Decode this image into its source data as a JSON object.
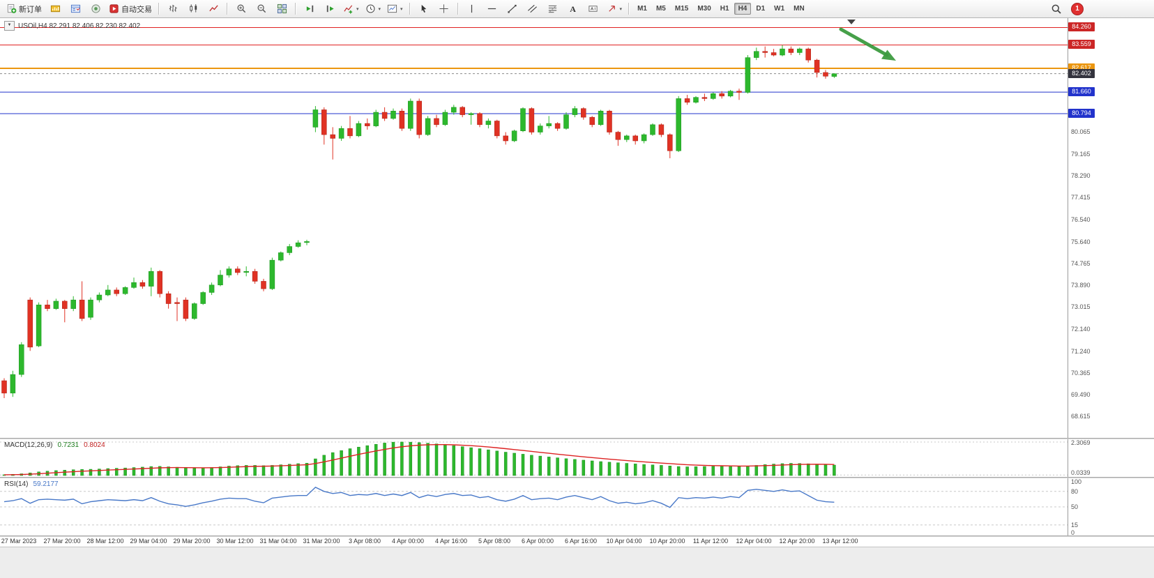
{
  "toolbar": {
    "new_order_label": "新订单",
    "autotrading_label": "自动交易",
    "timeframes": [
      "M1",
      "M5",
      "M15",
      "M30",
      "H1",
      "H4",
      "D1",
      "W1",
      "MN"
    ],
    "active_timeframe": "H4",
    "notification_count": "1"
  },
  "chart": {
    "symbol_label": "USOil,H4 82.291 82.406 82.230 82.402",
    "levels": [
      {
        "price": 84.26,
        "label": "84.260",
        "color": "#e02222",
        "badge": "#cc2626",
        "width": 1
      },
      {
        "price": 83.559,
        "label": "83.559",
        "color": "#e02222",
        "badge": "#cc2626",
        "width": 1
      },
      {
        "price": 82.617,
        "label": "82.617",
        "color": "#eb960f",
        "badge": "#eb960f",
        "width": 2
      },
      {
        "price": 81.66,
        "label": "81.660",
        "color": "#2233cc",
        "badge": "#2233cc",
        "width": 1
      },
      {
        "price": 80.794,
        "label": "80.794",
        "color": "#2233cc",
        "badge": "#2233cc",
        "width": 1
      }
    ],
    "current_badge": {
      "price": 82.402,
      "label": "82.402",
      "bg": "#34343e"
    },
    "axis_labels": [
      80.065,
      79.165,
      78.29,
      77.415,
      76.54,
      75.64,
      74.765,
      73.89,
      73.015,
      72.14,
      71.24,
      70.365,
      69.49,
      68.615
    ]
  },
  "chart_data": {
    "type": "candlestick",
    "symbol": "USOil",
    "timeframe": "H4",
    "current_ohlc": {
      "open": 82.291,
      "high": 82.406,
      "low": 82.23,
      "close": 82.402
    },
    "colors": {
      "bull": "#2db82d",
      "bear": "#e03224"
    },
    "ohlc": [
      [
        70.05,
        70.15,
        69.35,
        69.55
      ],
      [
        69.55,
        70.45,
        69.4,
        70.3
      ],
      [
        70.3,
        71.6,
        70.2,
        71.5
      ],
      [
        73.3,
        73.4,
        71.25,
        71.4
      ],
      [
        71.45,
        73.2,
        71.4,
        73.1
      ],
      [
        73.1,
        73.3,
        72.85,
        72.95
      ],
      [
        72.95,
        73.35,
        72.9,
        73.25
      ],
      [
        73.25,
        73.3,
        72.4,
        72.95
      ],
      [
        72.95,
        73.45,
        72.85,
        73.3
      ],
      [
        73.3,
        74.05,
        72.45,
        72.55
      ],
      [
        72.6,
        73.4,
        72.5,
        73.3
      ],
      [
        73.3,
        73.6,
        73.2,
        73.5
      ],
      [
        73.5,
        73.9,
        73.45,
        73.7
      ],
      [
        73.7,
        73.8,
        73.45,
        73.55
      ],
      [
        73.55,
        73.85,
        73.5,
        73.8
      ],
      [
        73.8,
        74.2,
        73.75,
        74.0
      ],
      [
        74.0,
        74.1,
        73.75,
        73.85
      ],
      [
        73.85,
        74.6,
        73.45,
        74.45
      ],
      [
        74.45,
        74.5,
        73.4,
        73.55
      ],
      [
        73.55,
        73.65,
        72.95,
        73.15
      ],
      [
        73.2,
        73.4,
        72.45,
        73.15
      ],
      [
        73.3,
        73.4,
        72.45,
        72.55
      ],
      [
        72.55,
        73.2,
        72.5,
        73.15
      ],
      [
        73.15,
        73.65,
        73.1,
        73.6
      ],
      [
        73.6,
        74.0,
        73.5,
        73.9
      ],
      [
        73.9,
        74.5,
        73.85,
        74.3
      ],
      [
        74.3,
        74.65,
        74.2,
        74.55
      ],
      [
        74.55,
        74.65,
        74.3,
        74.4
      ],
      [
        74.45,
        74.65,
        74.25,
        74.45
      ],
      [
        74.45,
        74.55,
        73.95,
        74.05
      ],
      [
        74.05,
        74.15,
        73.65,
        73.75
      ],
      [
        73.75,
        75.0,
        73.7,
        74.9
      ],
      [
        74.9,
        75.25,
        74.85,
        75.2
      ],
      [
        75.2,
        75.55,
        75.1,
        75.45
      ],
      [
        75.45,
        75.7,
        75.4,
        75.6
      ],
      [
        75.62,
        75.72,
        75.5,
        75.65
      ],
      [
        80.25,
        81.1,
        80.05,
        80.95
      ],
      [
        80.95,
        81.05,
        79.55,
        79.95
      ],
      [
        79.95,
        80.25,
        78.95,
        79.8
      ],
      [
        79.8,
        80.3,
        79.7,
        80.2
      ],
      [
        80.2,
        80.7,
        79.8,
        79.9
      ],
      [
        79.9,
        80.5,
        79.85,
        80.4
      ],
      [
        80.4,
        80.6,
        80.15,
        80.3
      ],
      [
        80.3,
        80.95,
        80.25,
        80.85
      ],
      [
        80.85,
        81.05,
        80.5,
        80.6
      ],
      [
        80.6,
        81.0,
        80.55,
        80.9
      ],
      [
        80.9,
        81.0,
        80.1,
        80.2
      ],
      [
        80.2,
        81.4,
        80.1,
        81.3
      ],
      [
        81.3,
        81.4,
        79.8,
        79.95
      ],
      [
        79.95,
        80.7,
        79.9,
        80.6
      ],
      [
        80.6,
        80.75,
        80.25,
        80.35
      ],
      [
        80.35,
        80.95,
        80.3,
        80.85
      ],
      [
        80.85,
        81.15,
        80.75,
        81.05
      ],
      [
        81.05,
        81.1,
        80.65,
        80.75
      ],
      [
        80.75,
        80.85,
        80.35,
        80.8
      ],
      [
        80.8,
        80.85,
        80.25,
        80.35
      ],
      [
        80.35,
        80.6,
        80.2,
        80.5
      ],
      [
        80.5,
        80.55,
        79.8,
        79.9
      ],
      [
        79.9,
        80.05,
        79.55,
        79.7
      ],
      [
        79.7,
        80.15,
        79.65,
        80.1
      ],
      [
        80.1,
        81.05,
        80.05,
        81.0
      ],
      [
        81.0,
        81.05,
        79.95,
        80.05
      ],
      [
        80.05,
        80.4,
        79.95,
        80.3
      ],
      [
        80.3,
        80.7,
        80.2,
        80.4
      ],
      [
        80.4,
        80.45,
        80.1,
        80.2
      ],
      [
        80.2,
        80.85,
        80.15,
        80.75
      ],
      [
        80.75,
        81.1,
        80.65,
        81.0
      ],
      [
        81.0,
        81.05,
        80.55,
        80.65
      ],
      [
        80.65,
        80.7,
        80.25,
        80.35
      ],
      [
        80.35,
        80.95,
        80.3,
        80.9
      ],
      [
        80.9,
        80.95,
        79.95,
        80.05
      ],
      [
        80.05,
        80.1,
        79.5,
        79.75
      ],
      [
        79.75,
        79.95,
        79.65,
        79.9
      ],
      [
        79.9,
        79.95,
        79.55,
        79.7
      ],
      [
        79.7,
        80.0,
        79.6,
        79.95
      ],
      [
        79.95,
        80.4,
        79.9,
        80.35
      ],
      [
        80.35,
        80.4,
        79.85,
        79.95
      ],
      [
        79.95,
        80.0,
        79.0,
        79.3
      ],
      [
        79.3,
        81.5,
        79.25,
        81.4
      ],
      [
        81.4,
        81.55,
        81.15,
        81.25
      ],
      [
        81.25,
        81.5,
        81.2,
        81.45
      ],
      [
        81.45,
        81.6,
        81.3,
        81.4
      ],
      [
        81.4,
        81.65,
        81.35,
        81.6
      ],
      [
        81.6,
        81.7,
        81.4,
        81.5
      ],
      [
        81.5,
        81.75,
        81.45,
        81.7
      ],
      [
        81.7,
        81.8,
        81.35,
        81.65
      ],
      [
        81.65,
        83.15,
        81.6,
        83.05
      ],
      [
        83.05,
        83.45,
        82.95,
        83.3
      ],
      [
        83.3,
        83.5,
        83.05,
        83.25
      ],
      [
        83.25,
        83.4,
        83.1,
        83.15
      ],
      [
        83.15,
        83.55,
        83.1,
        83.4
      ],
      [
        83.4,
        83.5,
        83.15,
        83.25
      ],
      [
        83.25,
        83.45,
        83.15,
        83.4
      ],
      [
        83.4,
        83.45,
        82.85,
        82.95
      ],
      [
        82.95,
        83.0,
        82.25,
        82.45
      ],
      [
        82.45,
        82.55,
        82.2,
        82.3
      ],
      [
        82.291,
        82.406,
        82.23,
        82.402
      ]
    ],
    "macd": {
      "label": "MACD(12,26,9)",
      "main_value": "0.7231",
      "signal_value": "0.8024",
      "scale_max": "2.3069",
      "scale_min": "0.0339",
      "histogram": [
        0.05,
        0.08,
        0.12,
        0.18,
        0.25,
        0.3,
        0.34,
        0.37,
        0.4,
        0.42,
        0.43,
        0.45,
        0.48,
        0.5,
        0.52,
        0.55,
        0.58,
        0.62,
        0.63,
        0.6,
        0.57,
        0.53,
        0.5,
        0.52,
        0.55,
        0.6,
        0.65,
        0.68,
        0.7,
        0.7,
        0.68,
        0.7,
        0.74,
        0.78,
        0.82,
        0.85,
        1.15,
        1.4,
        1.58,
        1.72,
        1.85,
        1.96,
        2.06,
        2.15,
        2.24,
        2.3,
        2.31,
        2.3,
        2.27,
        2.23,
        2.18,
        2.12,
        2.06,
        1.99,
        1.92,
        1.85,
        1.77,
        1.69,
        1.61,
        1.54,
        1.47,
        1.4,
        1.34,
        1.28,
        1.22,
        1.16,
        1.11,
        1.06,
        1.01,
        0.96,
        0.92,
        0.88,
        0.84,
        0.8,
        0.76,
        0.73,
        0.7,
        0.66,
        0.62,
        0.6,
        0.61,
        0.62,
        0.63,
        0.63,
        0.62,
        0.62,
        0.65,
        0.7,
        0.75,
        0.79,
        0.82,
        0.84,
        0.83,
        0.81,
        0.78,
        0.75,
        0.72
      ]
    },
    "rsi": {
      "label": "RSI(14)",
      "value": "59.2177",
      "levels": [
        80,
        50,
        15
      ],
      "scale_labels": [
        100,
        80,
        50,
        15,
        0
      ],
      "points": [
        60,
        62,
        66,
        57,
        64,
        65,
        64,
        63,
        65,
        56,
        60,
        62,
        64,
        63,
        62,
        64,
        62,
        68,
        61,
        56,
        54,
        51,
        54,
        58,
        61,
        65,
        67,
        66,
        66,
        61,
        58,
        67,
        69,
        71,
        72,
        72,
        88,
        80,
        76,
        78,
        72,
        74,
        73,
        76,
        72,
        75,
        72,
        78,
        68,
        73,
        70,
        74,
        76,
        72,
        73,
        68,
        70,
        64,
        61,
        65,
        72,
        64,
        66,
        67,
        64,
        69,
        72,
        68,
        64,
        70,
        62,
        57,
        59,
        56,
        58,
        62,
        57,
        49,
        68,
        66,
        68,
        67,
        69,
        67,
        70,
        68,
        82,
        84,
        82,
        80,
        83,
        80,
        81,
        72,
        63,
        60,
        59
      ]
    },
    "time_labels": [
      "27 Mar 2023",
      "27 Mar 20:00",
      "28 Mar 12:00",
      "29 Mar 04:00",
      "29 Mar 20:00",
      "30 Mar 12:00",
      "31 Mar 04:00",
      "31 Mar 20:00",
      "3 Apr 08:00",
      "4 Apr 00:00",
      "4 Apr 16:00",
      "5 Apr 08:00",
      "6 Apr 00:00",
      "6 Apr 16:00",
      "10 Apr 04:00",
      "10 Apr 20:00",
      "11 Apr 12:00",
      "12 Apr 04:00",
      "12 Apr 20:00",
      "13 Apr 12:00"
    ],
    "annotation_arrow": {
      "color": "#3d9b40",
      "direction": "down-right"
    }
  }
}
